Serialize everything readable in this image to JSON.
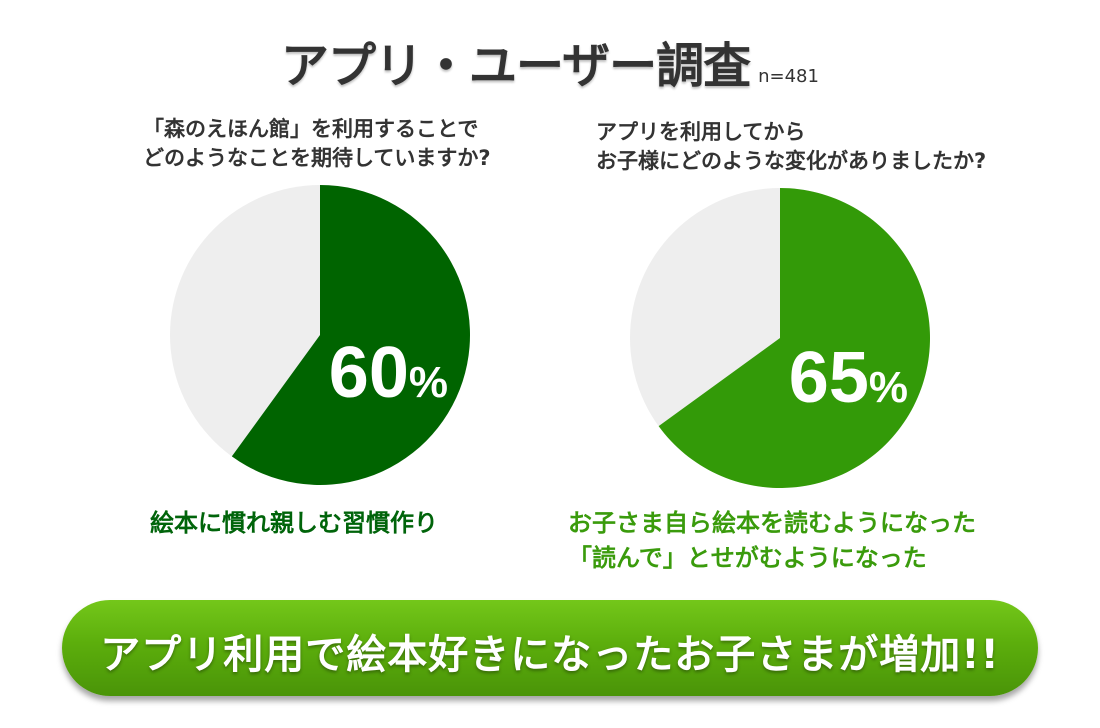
{
  "header": {
    "title": "アプリ・ユーザー調査",
    "sample_note": "n=481"
  },
  "colors": {
    "left_pie": "#006400",
    "right_pie": "#339a08",
    "pie_rest": "#eeeeee",
    "banner": "#5cae0c"
  },
  "chart_data": [
    {
      "type": "pie",
      "title": "",
      "question_lines": [
        "「森のえほん館」を利用することで",
        "どのようなことを期待していますか?"
      ],
      "values": [
        60,
        40
      ],
      "display_value": "60",
      "unit": "%",
      "highlight_label": [
        "絵本に慣れ親しむ習慣作り"
      ]
    },
    {
      "type": "pie",
      "title": "",
      "question_lines": [
        "アプリを利用してから",
        "お子様にどのような変化がありましたか?"
      ],
      "values": [
        65,
        35
      ],
      "display_value": "65",
      "unit": "%",
      "highlight_label": [
        "お子さま自ら絵本を読むようになった",
        "「読んで」とせがむようになった"
      ]
    }
  ],
  "banner": {
    "text": "アプリ利用で絵本好きになったお子さまが増加!!"
  }
}
